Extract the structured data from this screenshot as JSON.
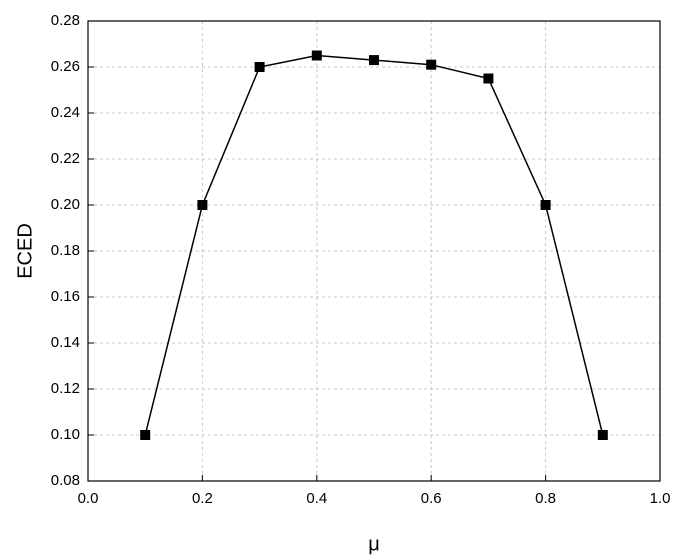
{
  "chart_data": {
    "type": "line",
    "x_label": "μ",
    "y_label": "ECED",
    "x": [
      0.1,
      0.2,
      0.3,
      0.4,
      0.5,
      0.6,
      0.7,
      0.8,
      0.9
    ],
    "series": [
      {
        "color": "#000000",
        "values": [
          0.1,
          0.2,
          0.26,
          0.265,
          0.263,
          0.261,
          0.255,
          0.2,
          0.1
        ]
      }
    ],
    "xlim": [
      0,
      1
    ],
    "xticks": [
      {
        "value": 0,
        "label": "0.0"
      },
      0.2,
      0.4,
      0.6,
      0.8,
      {
        "value": 1,
        "label": "1.0"
      }
    ],
    "ylim": [
      0.08,
      0.28
    ],
    "yticks": [
      0.08,
      {
        "value": 0.1,
        "label": "0.10"
      },
      0.12,
      0.14,
      0.16,
      0.18,
      {
        "value": 0.2,
        "label": "0.20"
      },
      0.22,
      0.24,
      0.26,
      0.28
    ],
    "grid": true
  }
}
